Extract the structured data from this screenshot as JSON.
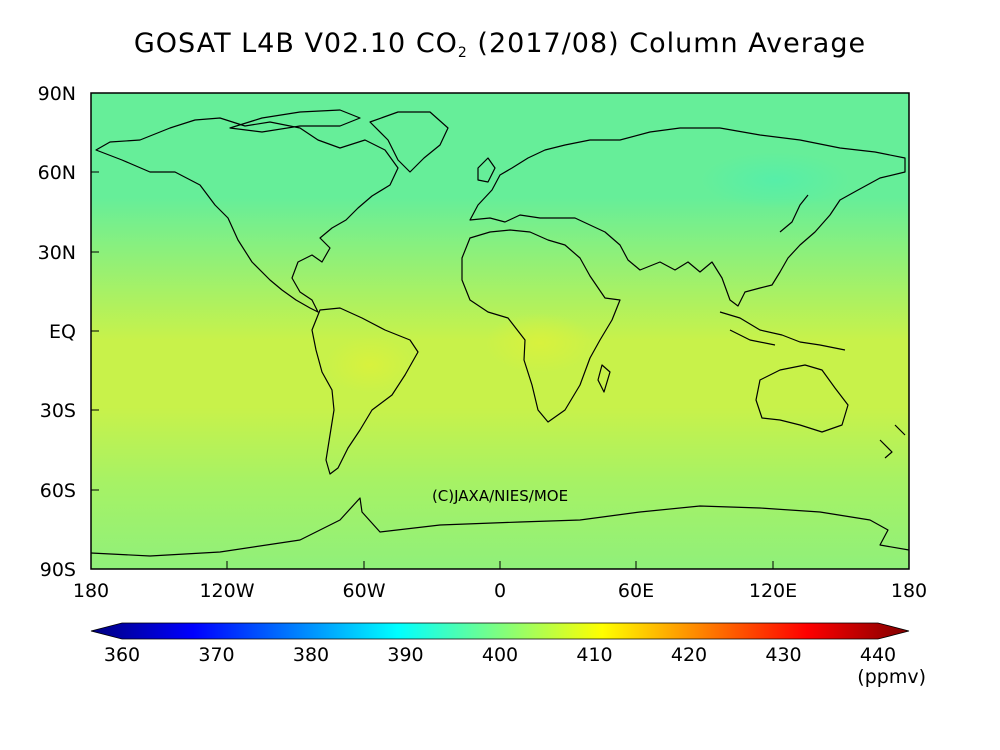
{
  "title": {
    "prefix": "GOSAT L4B V02.10 CO",
    "subscript": "2",
    "suffix": " (2017/08) Column Average"
  },
  "y_axis": {
    "ticks": [
      "90N",
      "60N",
      "30N",
      "EQ",
      "30S",
      "60S",
      "90S"
    ]
  },
  "x_axis": {
    "ticks": [
      "180",
      "120W",
      "60W",
      "0",
      "60E",
      "120E",
      "180"
    ]
  },
  "credit": "(C)JAXA/NIES/MOE",
  "colorbar": {
    "ticks": [
      "360",
      "370",
      "380",
      "390",
      "400",
      "410",
      "420",
      "430",
      "440"
    ],
    "unit": "(ppmv)",
    "colors": [
      "#00007f",
      "#0000ff",
      "#007fff",
      "#00ffff",
      "#7fff7f",
      "#ffff00",
      "#ff7f00",
      "#ff0000",
      "#7f0000"
    ]
  },
  "map": {
    "field_colors": {
      "arctic": "#66ee99",
      "siberia_low": "#55eeaa",
      "midlat_north": "#8ef07a",
      "tropics": "#c8f24a",
      "south": "#a6f265",
      "antarctic": "#90f07a"
    }
  }
}
